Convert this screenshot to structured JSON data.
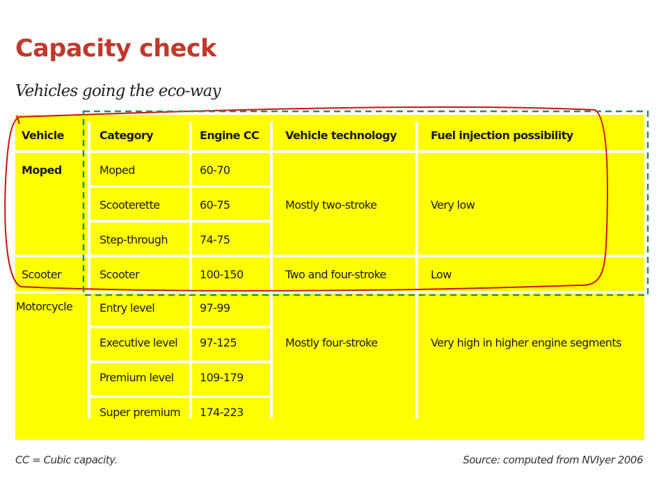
{
  "title": "Capacity check",
  "subtitle": "Vehicles going the eco-way",
  "table": {
    "headers": [
      "Vehicle",
      "Category",
      "Engine CC",
      "Vehicle technology",
      "Fuel injection possibility"
    ],
    "vehicles": [
      "Moped",
      "Scooter",
      "Motorcycle"
    ],
    "categories": [
      "Moped",
      "Scooterette",
      "Step-through",
      "Scooter",
      "Entry level",
      "Executive level",
      "Premium level",
      "Super premium"
    ],
    "engine_cc": [
      "60-70",
      "60-75",
      "74-75",
      "100-150",
      "97-99",
      "97-125",
      "109-179",
      "174-223"
    ],
    "technology": [
      "Mostly two-stroke",
      "Two and four-stroke",
      "Mostly four-stroke"
    ],
    "fuel_injection": [
      "Very low",
      "Low",
      "Very high in higher engine segments"
    ]
  },
  "footer": {
    "note": "CC = Cubic capacity.",
    "source": "Source: computed from NVIyer 2006"
  },
  "colors": {
    "table_background": "#ffff00",
    "title": "#c0392b",
    "red_annotation": "#cc1111",
    "green_annotation": "#2e8b57"
  }
}
